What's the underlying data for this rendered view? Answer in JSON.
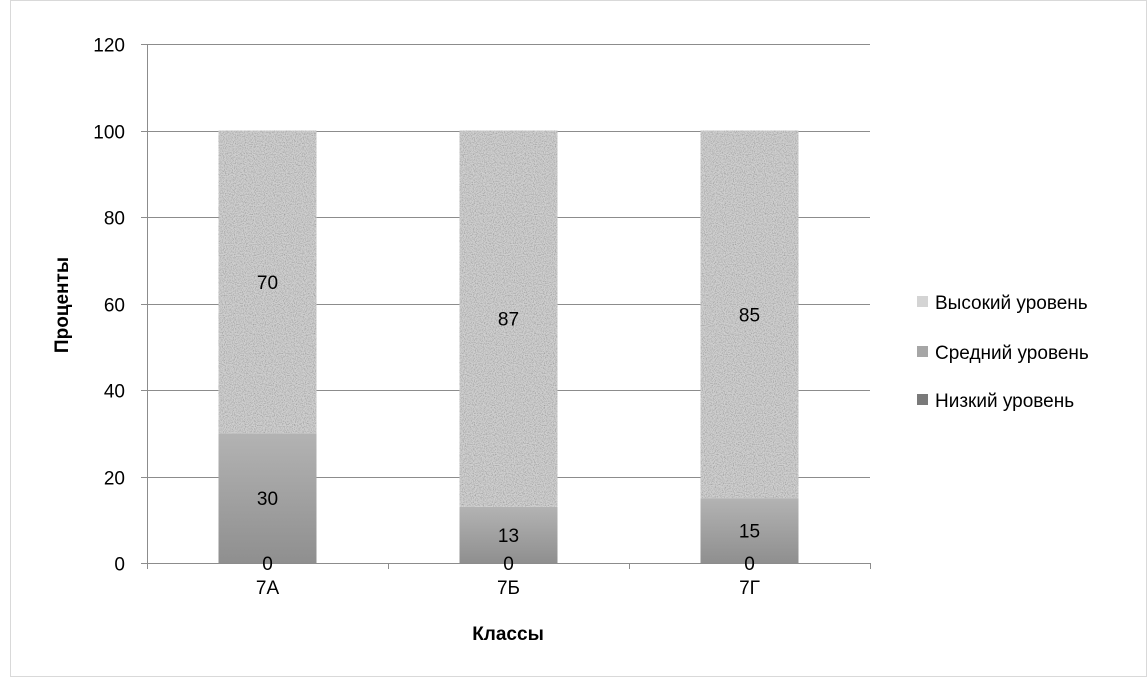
{
  "chart_data": {
    "type": "bar",
    "stacked": true,
    "categories": [
      "7А",
      "7Б",
      "7Г"
    ],
    "series": [
      {
        "name": "Низкий уровень",
        "values": [
          0,
          0,
          0
        ],
        "color": "#7a7a7a"
      },
      {
        "name": "Средний уровень",
        "values": [
          30,
          13,
          15
        ],
        "color": "#a6a6a6"
      },
      {
        "name": "Высокий уровень",
        "values": [
          70,
          87,
          85
        ],
        "color": "#cfcfcf"
      }
    ],
    "xlabel": "Классы",
    "ylabel": "Проценты",
    "ylim": [
      0,
      120
    ],
    "yticks": [
      0,
      20,
      40,
      60,
      80,
      100,
      120
    ],
    "grid": true,
    "legend_position": "right"
  }
}
